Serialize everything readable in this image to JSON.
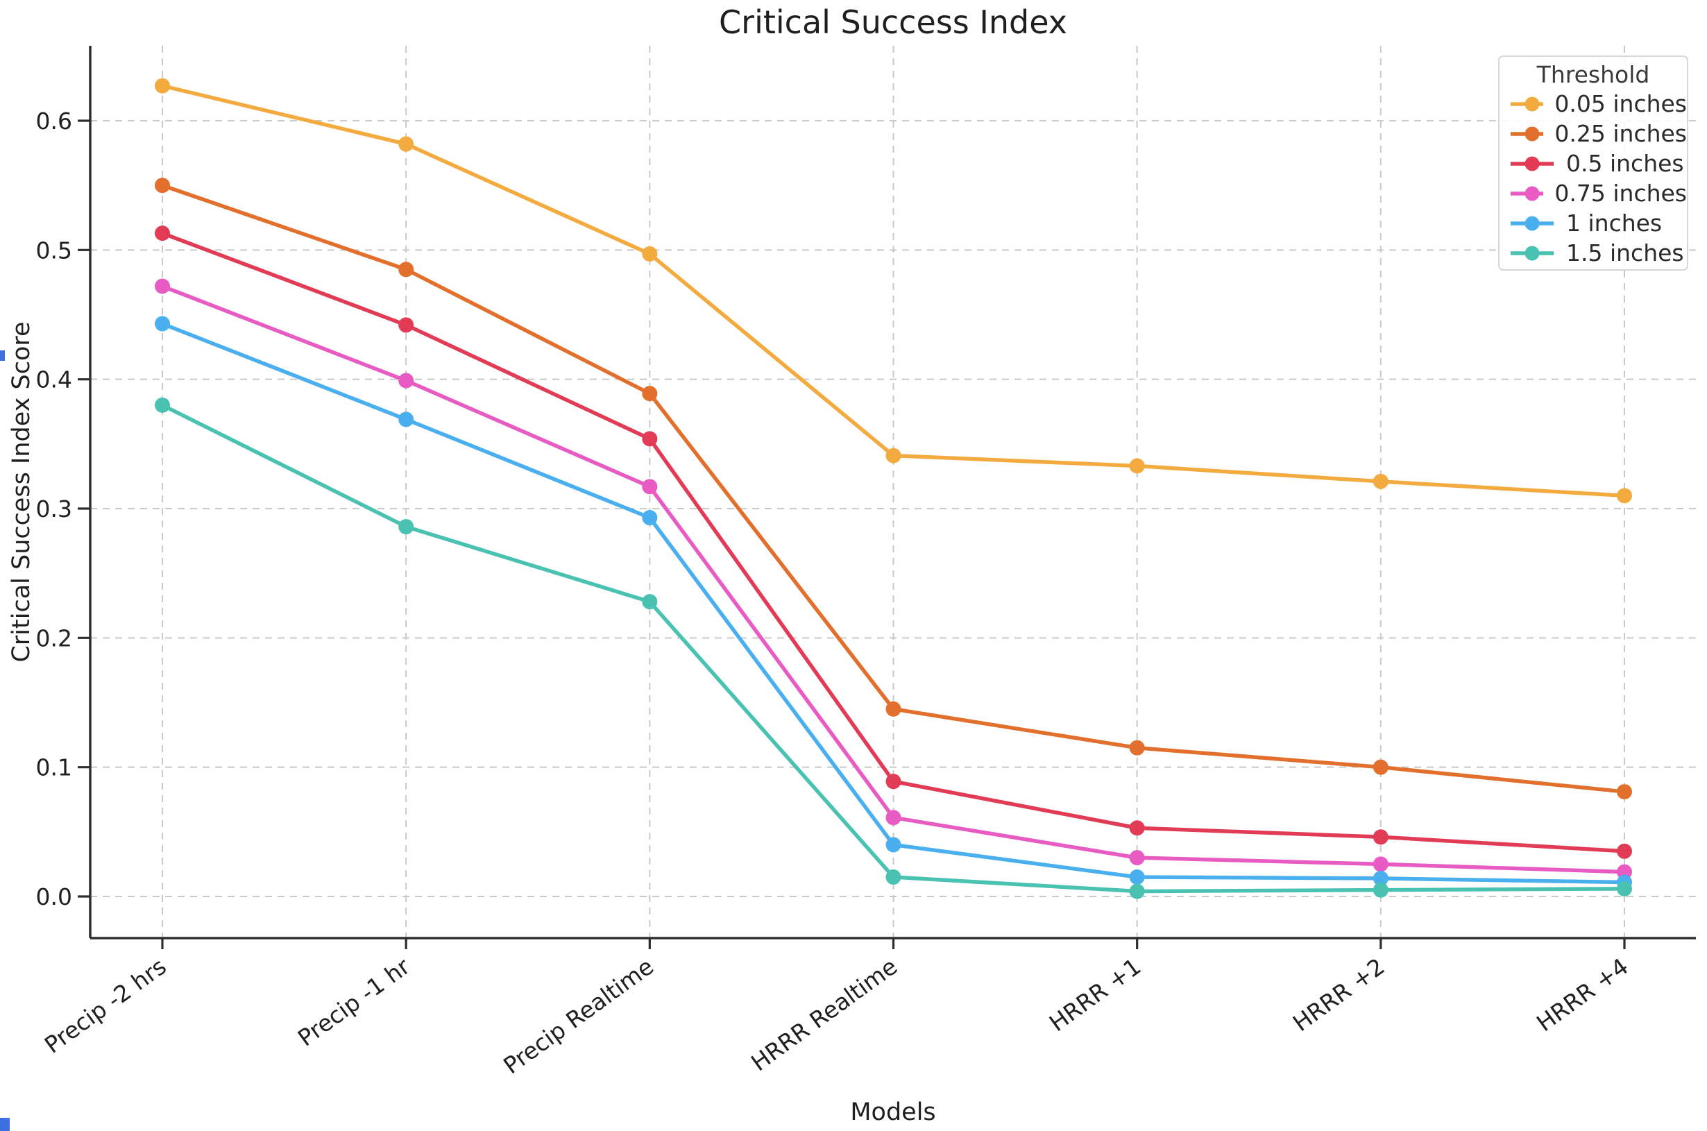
{
  "chart_data": {
    "type": "line",
    "title": "Critical Success Index",
    "xlabel": "Models",
    "ylabel": "Critical Success Index Score",
    "categories": [
      "Precip -2 hrs",
      "Precip -1 hr",
      "Precip Realtime",
      "HRRR Realtime",
      "HRRR +1",
      "HRRR +2",
      "HRRR +4"
    ],
    "yticks": [
      0.0,
      0.1,
      0.2,
      0.3,
      0.4,
      0.5,
      0.6
    ],
    "ylim": [
      -0.032,
      0.658
    ],
    "grid": "dashed-both",
    "legend_title": "Threshold",
    "legend_position": "upper right",
    "series": [
      {
        "name": "0.05 inches",
        "color": "#F3AB40",
        "values": [
          0.627,
          0.582,
          0.497,
          0.341,
          0.333,
          0.321,
          0.31
        ]
      },
      {
        "name": "0.25 inches",
        "color": "#E26F2C",
        "values": [
          0.55,
          0.485,
          0.389,
          0.145,
          0.115,
          0.1,
          0.081
        ]
      },
      {
        "name": "0.5 inches",
        "color": "#E23B55",
        "values": [
          0.513,
          0.442,
          0.354,
          0.089,
          0.053,
          0.046,
          0.035
        ]
      },
      {
        "name": "0.75 inches",
        "color": "#E75BC3",
        "values": [
          0.472,
          0.399,
          0.317,
          0.061,
          0.03,
          0.025,
          0.019
        ]
      },
      {
        "name": "1 inches",
        "color": "#4AAFEF",
        "values": [
          0.443,
          0.369,
          0.293,
          0.04,
          0.015,
          0.014,
          0.011
        ]
      },
      {
        "name": "1.5 inches",
        "color": "#49C2B1",
        "values": [
          0.38,
          0.286,
          0.228,
          0.015,
          0.004,
          0.005,
          0.006
        ]
      }
    ]
  }
}
